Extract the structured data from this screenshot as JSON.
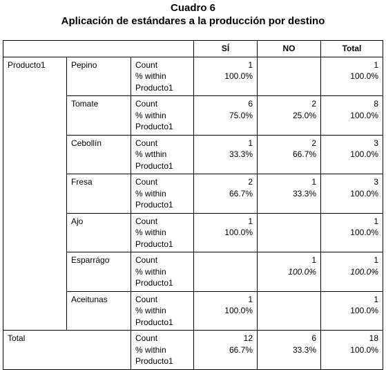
{
  "header": {
    "title": "Cuadro 6",
    "subtitle": "Aplicación de estándares a la producción por destino"
  },
  "table": {
    "columns": [
      "SÍ",
      "NO",
      "Total"
    ],
    "row_header": "Producto1",
    "rows": [
      {
        "label": "Pepino",
        "stat": [
          "Count",
          "% within Producto1"
        ],
        "count": [
          1,
          null,
          1
        ],
        "percent": [
          "100.0%",
          null,
          "100.0%"
        ]
      },
      {
        "label": "Tomate",
        "stat": [
          "Count",
          "% within Producto1"
        ],
        "count": [
          6,
          2,
          8
        ],
        "percent": [
          "75.0%",
          "25.0%",
          "100.0%"
        ]
      },
      {
        "label": "Cebollín",
        "stat": [
          "Count",
          "% wtthin Producto1"
        ],
        "count": [
          1,
          2,
          3
        ],
        "percent": [
          "33.3%",
          "66.7%",
          "100.0%"
        ]
      },
      {
        "label": "Fresa",
        "stat": [
          "Count",
          "% within Producto1"
        ],
        "count": [
          2,
          1,
          3
        ],
        "percent": [
          "66.7%",
          "33.3%",
          "100.0%"
        ]
      },
      {
        "label": "Ajo",
        "stat": [
          "Count",
          "% within Producto1"
        ],
        "count": [
          1,
          null,
          1
        ],
        "percent": [
          "100.0%",
          null,
          "100.0%"
        ]
      },
      {
        "label": "Esparrágo",
        "stat": [
          "Count",
          "% within Producto1"
        ],
        "count": [
          null,
          1,
          1
        ],
        "percent": [
          null,
          "100.0%",
          "100.0%"
        ],
        "italic": true
      },
      {
        "label": "Aceitunas",
        "stat": [
          "Count",
          "% within Producto1"
        ],
        "count": [
          1,
          null,
          1
        ],
        "percent": [
          "100.0%",
          null,
          "100.0%"
        ]
      }
    ],
    "total": {
      "label": "Total",
      "stat": [
        "Count",
        "% within Producto1"
      ],
      "count": [
        12,
        6,
        18
      ],
      "percent": [
        "66.7%",
        "33.3%",
        "100.0%"
      ]
    }
  }
}
